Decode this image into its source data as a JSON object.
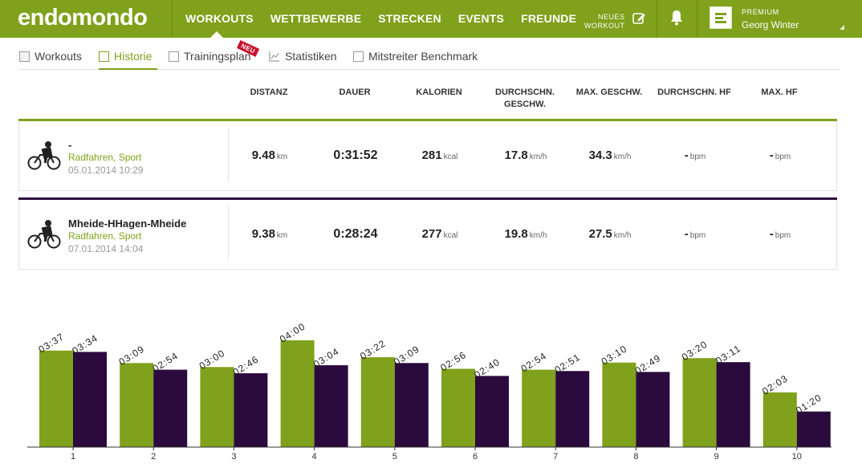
{
  "header": {
    "logo": "endomondo",
    "nav": [
      "WORKOUTS",
      "WETTBEWERBE",
      "STRECKEN",
      "EVENTS",
      "FREUNDE"
    ],
    "new_workout_l1": "NEUES",
    "new_workout_l2": "WORKOUT",
    "premium": "PREMIUM",
    "username": "Georg Winter"
  },
  "subtabs": {
    "workouts": "Workouts",
    "history": "Historie",
    "training": "Trainingsplan",
    "new_badge": "NEU",
    "stats": "Statistiken",
    "benchmark": "Mitstreiter Benchmark"
  },
  "columns": {
    "distance": "DISTANZ",
    "duration": "DAUER",
    "calories": "KALORIEN",
    "avg_speed_1": "DURCHSCHN.",
    "avg_speed_2": "GESCHW.",
    "max_speed": "MAX. GESCHW.",
    "avg_hr": "DURCHSCHN. HF",
    "max_hr": "MAX. HF"
  },
  "workouts": [
    {
      "title": "-",
      "sport": "Radfahren, Sport",
      "date": "05.01.2014 10:29",
      "distance": "9.48",
      "distance_unit": "km",
      "duration": "0:31:52",
      "calories": "281",
      "calories_unit": "kcal",
      "avg_speed": "17.8",
      "avg_speed_unit": "km/h",
      "max_speed": "34.3",
      "max_speed_unit": "km/h",
      "avg_hr": "-",
      "avg_hr_unit": "bpm",
      "max_hr": "-",
      "max_hr_unit": "bpm",
      "color": "#7fa11b"
    },
    {
      "title": "Mheide-HHagen-Mheide",
      "sport": "Radfahren, Sport",
      "date": "07.01.2014 14:04",
      "distance": "9.38",
      "distance_unit": "km",
      "duration": "0:28:24",
      "calories": "277",
      "calories_unit": "kcal",
      "avg_speed": "19.8",
      "avg_speed_unit": "km/h",
      "max_speed": "27.5",
      "max_speed_unit": "km/h",
      "avg_hr": "-",
      "avg_hr_unit": "bpm",
      "max_hr": "-",
      "max_hr_unit": "bpm",
      "color": "#2b0a3d"
    }
  ],
  "colors": {
    "green": "#7fa11b",
    "purple": "#2b0a3d"
  },
  "chart_data": {
    "type": "bar",
    "categories": [
      "1",
      "2",
      "3",
      "4",
      "5",
      "6",
      "7",
      "8",
      "9",
      "10"
    ],
    "series": [
      {
        "color": "#7fa11b",
        "values": [
          217,
          189,
          180,
          240,
          202,
          176,
          174,
          190,
          200,
          123
        ],
        "labels": [
          "03:37",
          "03:09",
          "03:00",
          "04:00",
          "03:22",
          "02:56",
          "02:54",
          "03:10",
          "03:20",
          "02:03"
        ]
      },
      {
        "color": "#2b0a3d",
        "values": [
          214,
          174,
          166,
          184,
          189,
          160,
          171,
          169,
          191,
          80
        ],
        "labels": [
          "03:34",
          "02:54",
          "02:46",
          "03:04",
          "03:09",
          "02:40",
          "02:51",
          "02:49",
          "03:11",
          "01:20"
        ]
      }
    ],
    "ylim": [
      0,
      240
    ],
    "grid": false,
    "legend": "none"
  }
}
